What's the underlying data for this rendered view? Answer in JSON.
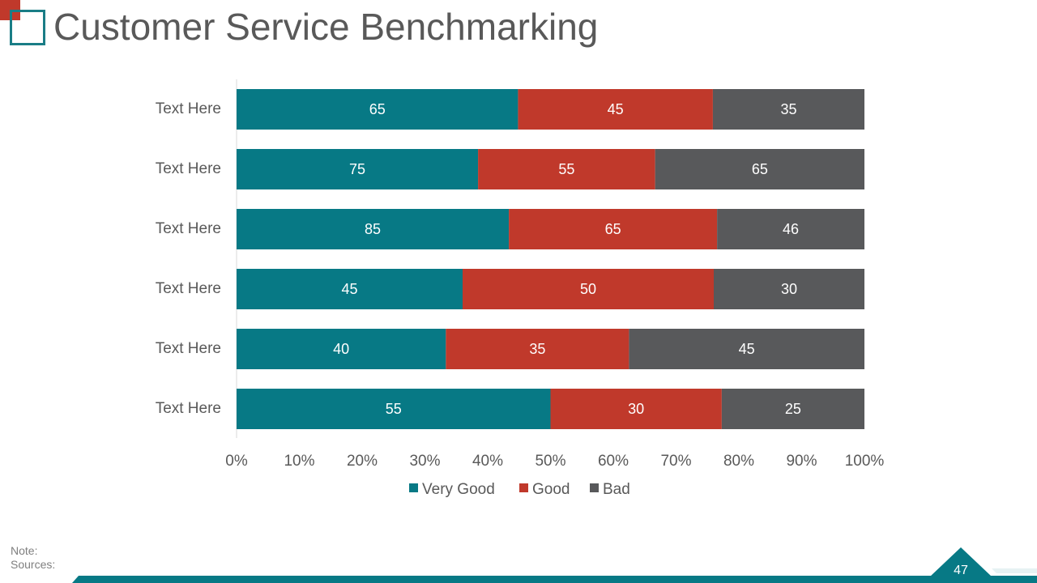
{
  "slide": {
    "title": "Customer Service Benchmarking",
    "note_label": "Note:",
    "sources_label": "Sources:",
    "page_number": "47"
  },
  "colors": {
    "very_good": "#077985",
    "good": "#c0392b",
    "bad": "#58595b",
    "accent": "#1a7d86"
  },
  "chart_data": {
    "type": "bar",
    "orientation": "horizontal",
    "stacked": "percent",
    "title": "",
    "xlabel": "",
    "ylabel": "",
    "xlim": [
      0,
      100
    ],
    "categories": [
      "Text Here",
      "Text Here",
      "Text Here",
      "Text Here",
      "Text Here",
      "Text Here"
    ],
    "series": [
      {
        "name": "Very Good",
        "color": "#077985",
        "values": [
          65,
          75,
          85,
          45,
          40,
          55
        ]
      },
      {
        "name": "Good",
        "color": "#c0392b",
        "values": [
          45,
          55,
          65,
          50,
          35,
          30
        ]
      },
      {
        "name": "Bad",
        "color": "#58595b",
        "values": [
          35,
          65,
          46,
          30,
          45,
          25
        ]
      }
    ],
    "x_ticks": [
      "0%",
      "10%",
      "20%",
      "30%",
      "40%",
      "50%",
      "60%",
      "70%",
      "80%",
      "90%",
      "100%"
    ],
    "legend_position": "bottom",
    "grid": false
  }
}
